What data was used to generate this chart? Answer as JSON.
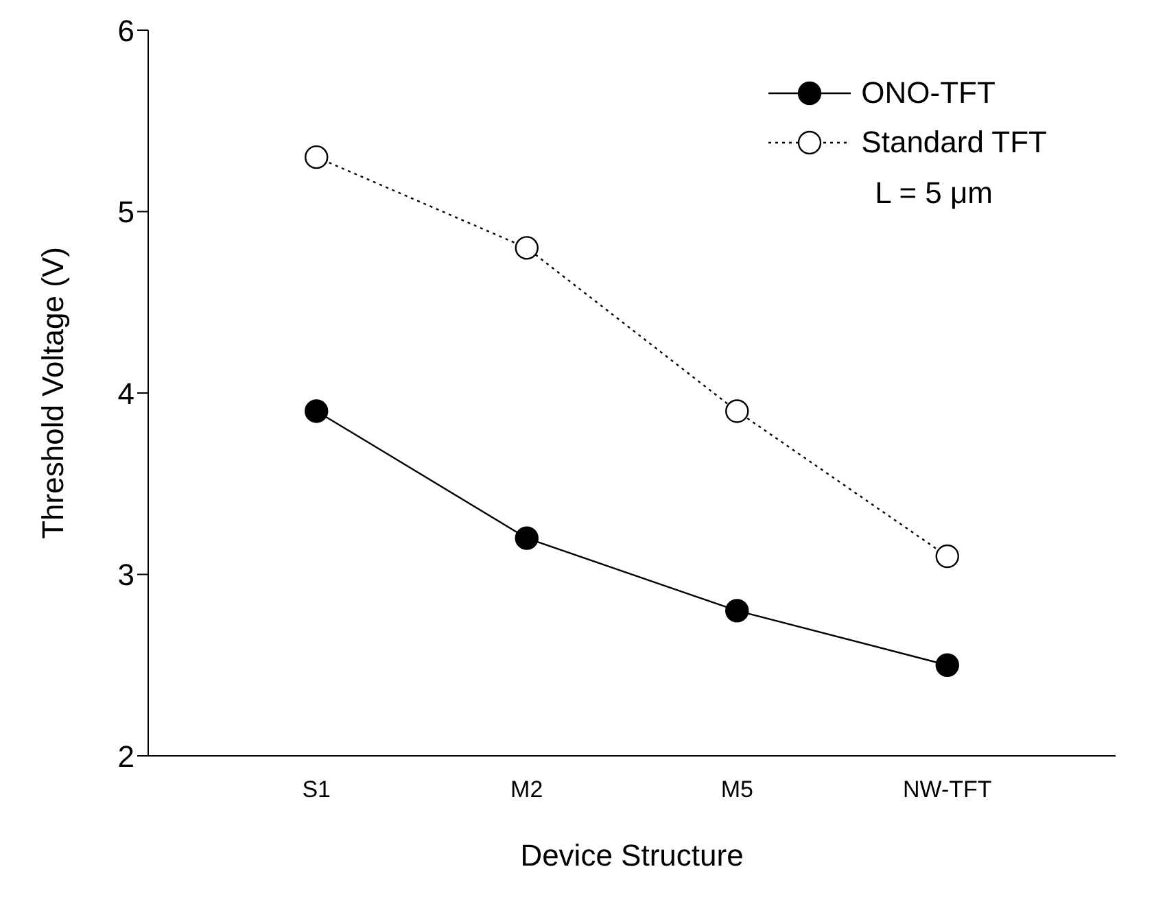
{
  "chart_data": {
    "type": "line",
    "xlabel": "Device Structure",
    "ylabel": "Threshold Voltage (V)",
    "categories": [
      "S1",
      "M2",
      "M5",
      "NW-TFT"
    ],
    "series": [
      {
        "name": "ONO-TFT",
        "color": "#000000",
        "line_style": "solid",
        "values": [
          3.9,
          3.2,
          2.8,
          2.5
        ]
      },
      {
        "name": "Standard TFT",
        "color": "#000000",
        "line_style": "dotted",
        "values": [
          5.3,
          4.8,
          3.9,
          3.1
        ]
      }
    ],
    "ylim": [
      2,
      6
    ],
    "yticks": [
      2,
      3,
      4,
      5,
      6
    ],
    "grid": false,
    "legend": "top right",
    "marker": "circle",
    "annotations": [
      "L = 5 μm"
    ]
  }
}
